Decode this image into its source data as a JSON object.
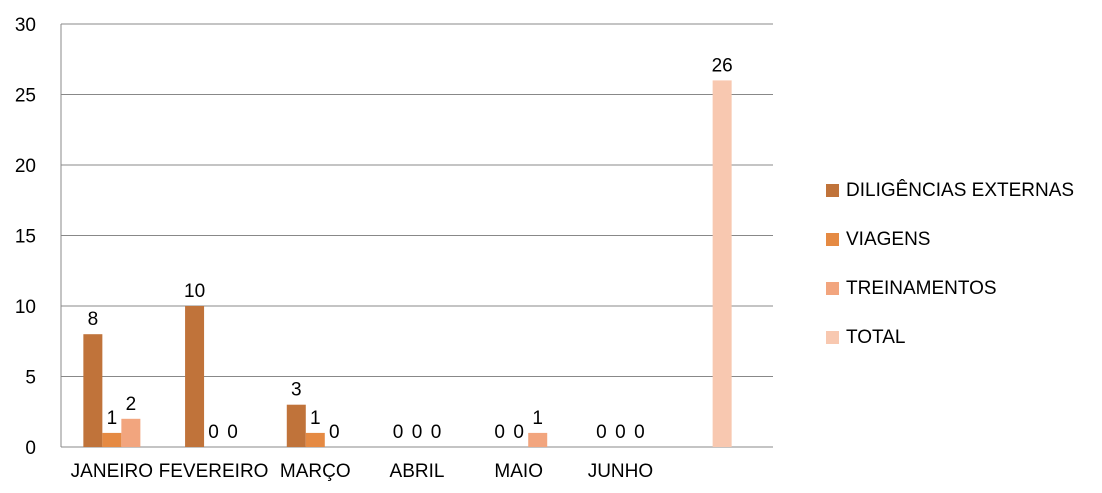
{
  "chart_data": {
    "type": "bar",
    "categories": [
      "JANEIRO",
      "FEVEREIRO",
      "MARÇO",
      "ABRIL",
      "MAIO",
      "JUNHO",
      ""
    ],
    "series": [
      {
        "name": "DILIGÊNCIAS EXTERNAS",
        "color": "#c0733a",
        "values": [
          8,
          10,
          3,
          0,
          0,
          0,
          null
        ]
      },
      {
        "name": "VIAGENS",
        "color": "#e58a43",
        "values": [
          1,
          0,
          1,
          0,
          0,
          0,
          null
        ]
      },
      {
        "name": "TREINAMENTOS",
        "color": "#f2a57e",
        "values": [
          2,
          0,
          0,
          0,
          1,
          0,
          null
        ]
      },
      {
        "name": "TOTAL",
        "color": "#f8c8b0",
        "values": [
          null,
          null,
          null,
          null,
          null,
          null,
          26
        ]
      }
    ],
    "ylim": [
      0,
      30
    ],
    "yticks": [
      "0",
      "5",
      "10",
      "15",
      "20",
      "25",
      "30"
    ],
    "grid": true,
    "legend_position": "right"
  }
}
